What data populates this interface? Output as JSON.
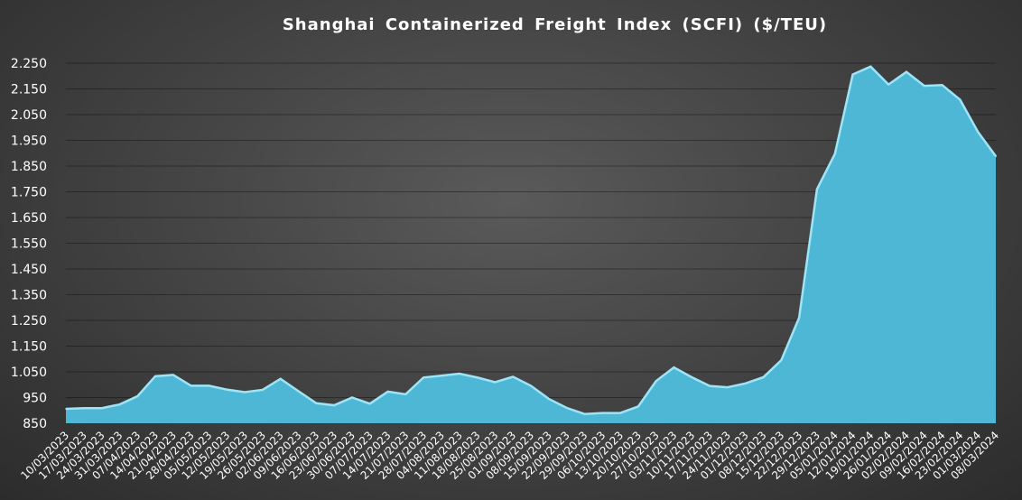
{
  "chart_data": {
    "type": "area",
    "title": "Shanghai  Containerized  Freight  Index  (SCFI) ($/TEU)",
    "xlabel": "",
    "ylabel": "",
    "ylim": [
      850,
      2275
    ],
    "yticks": [
      "850",
      "950",
      "1.050",
      "1.150",
      "1.250",
      "1.350",
      "1.450",
      "1.550",
      "1.650",
      "1.750",
      "1.850",
      "1.950",
      "2.050",
      "2.150",
      "2.250"
    ],
    "ytick_values": [
      850,
      950,
      1050,
      1150,
      1250,
      1350,
      1450,
      1550,
      1650,
      1750,
      1850,
      1950,
      2050,
      2150,
      2250
    ],
    "grid": true,
    "legend": "none",
    "fill_color": "#4fb7d6",
    "line_color": "#9ee4f5",
    "categories": [
      "10/03/2023",
      "17/03/2023",
      "24/03/2023",
      "31/03/2023",
      "07/04/2023",
      "14/04/2023",
      "21/04/2023",
      "28/04/2023",
      "05/05/2023",
      "12/05/2023",
      "19/05/2023",
      "26/05/2023",
      "02/06/2023",
      "09/06/2023",
      "16/06/2023",
      "23/06/2023",
      "30/06/2023",
      "07/07/2023",
      "14/07/2023",
      "21/07/2023",
      "28/07/2023",
      "04/08/2023",
      "11/08/2023",
      "18/08/2023",
      "25/08/2023",
      "01/09/2023",
      "08/09/2023",
      "15/09/2023",
      "22/09/2023",
      "29/09/2023",
      "06/10/2023",
      "13/10/2023",
      "20/10/2023",
      "27/10/2023",
      "03/11/2023",
      "10/11/2023",
      "17/11/2023",
      "24/11/2023",
      "01/12/2023",
      "08/12/2023",
      "15/12/2023",
      "22/12/2023",
      "29/12/2023",
      "05/01/2024",
      "12/01/2024",
      "19/01/2024",
      "26/01/2024",
      "02/02/2024",
      "09/02/2024",
      "16/02/2024",
      "23/02/2024",
      "01/03/2024",
      "08/03/2024"
    ],
    "values": [
      906,
      909,
      909,
      923,
      955,
      1033,
      1038,
      996,
      996,
      981,
      971,
      980,
      1023,
      975,
      928,
      920,
      950,
      926,
      973,
      963,
      1028,
      1035,
      1043,
      1028,
      1010,
      1031,
      996,
      945,
      910,
      886,
      890,
      890,
      915,
      1014,
      1067,
      1029,
      995,
      990,
      1005,
      1029,
      1095,
      1260,
      1760,
      1897,
      2206,
      2237,
      2167,
      2216,
      2162,
      2165,
      2108,
      1983,
      1888
    ]
  }
}
